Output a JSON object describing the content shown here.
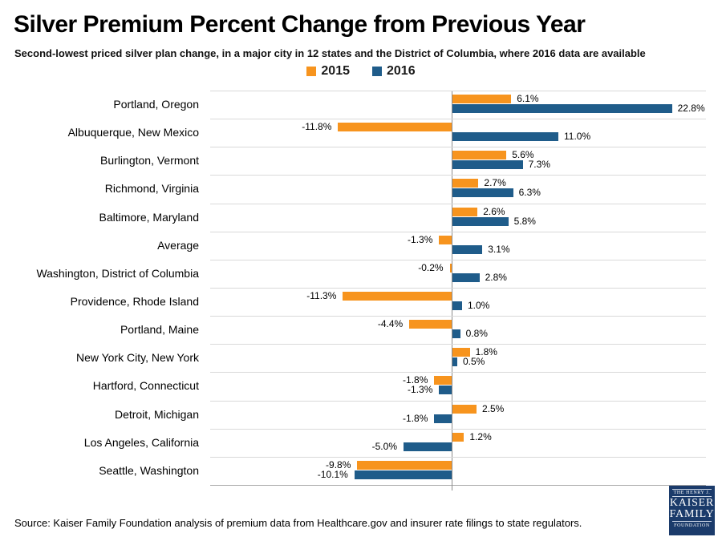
{
  "header": {
    "title": "Silver Premium Percent Change from Previous Year",
    "subtitle": "Second-lowest priced silver plan change, in a major city in 12 states and the District of Columbia, where 2016 data are available"
  },
  "colors": {
    "series_2015": "#F7941E",
    "series_2016": "#1F5C8A",
    "gridline": "#D9D9D9",
    "axis_line": "#A6A6A6",
    "logo_background": "#1B3B6B"
  },
  "chart_data": {
    "type": "bar",
    "orientation": "horizontal",
    "title": "Silver Premium Percent Change from Previous Year",
    "subtitle": "Second-lowest priced silver plan change, in a major city in 12 states and the District of Columbia, where 2016 data are available",
    "xlabel": "",
    "ylabel": "",
    "xlim": [
      -25,
      26.5
    ],
    "grid": "row-separators-only",
    "legend_position": "top-center",
    "value_label_format": "0.0%",
    "categories": [
      "Portland, Oregon",
      "Albuquerque, New Mexico",
      "Burlington, Vermont",
      "Richmond, Virginia",
      "Baltimore, Maryland",
      "Average",
      "Washington, District of Columbia",
      "Providence, Rhode Island",
      "Portland, Maine",
      "New York City, New York",
      "Hartford, Connecticut",
      "Detroit, Michigan",
      "Los Angeles, California",
      "Seattle, Washington"
    ],
    "series": [
      {
        "name": "2015",
        "color": "#F7941E",
        "values": [
          6.1,
          -11.8,
          5.6,
          2.7,
          2.6,
          -1.3,
          -0.2,
          -11.3,
          -4.4,
          1.8,
          -1.8,
          2.5,
          1.2,
          -9.8
        ]
      },
      {
        "name": "2016",
        "color": "#1F5C8A",
        "values": [
          22.8,
          11.0,
          7.3,
          6.3,
          5.8,
          3.1,
          2.8,
          1.0,
          0.8,
          0.5,
          -1.3,
          -1.8,
          -5.0,
          -10.1
        ]
      }
    ]
  },
  "footer": {
    "source": "Source: Kaiser Family Foundation analysis of premium data from Healthcare.gov and insurer rate filings to state regulators."
  },
  "logo": {
    "lines": [
      "THE HENRY J.",
      "KAISER",
      "FAMILY",
      "FOUNDATION"
    ]
  }
}
